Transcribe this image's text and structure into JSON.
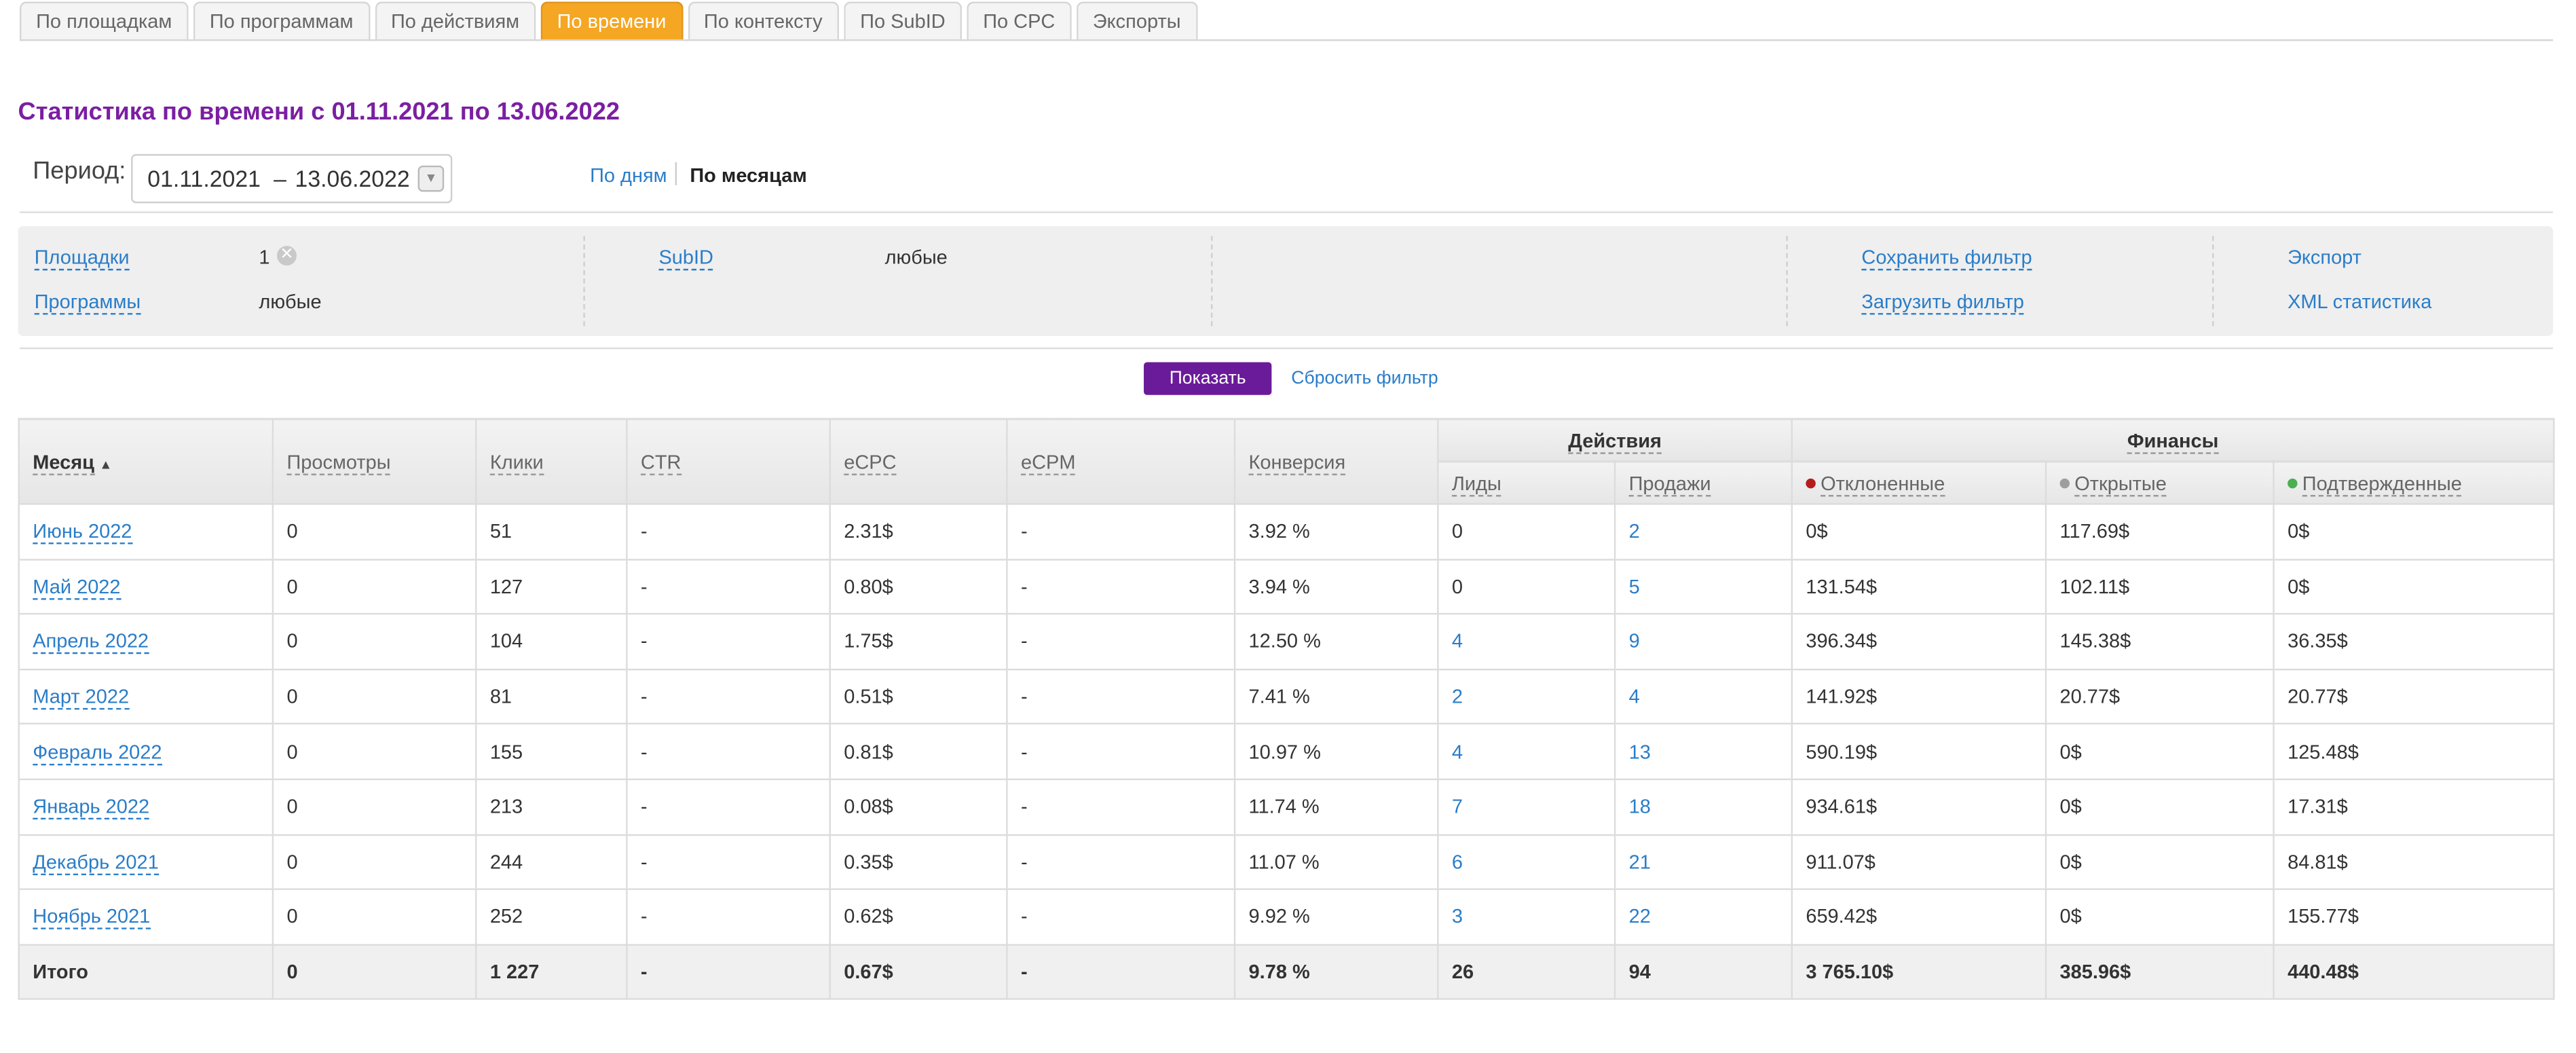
{
  "tabs": [
    {
      "label": "По площадкам",
      "active": false
    },
    {
      "label": "По программам",
      "active": false
    },
    {
      "label": "По действиям",
      "active": false
    },
    {
      "label": "По времени",
      "active": true
    },
    {
      "label": "По контексту",
      "active": false
    },
    {
      "label": "По SubID",
      "active": false
    },
    {
      "label": "По CPC",
      "active": false
    },
    {
      "label": "Экспорты",
      "active": false
    }
  ],
  "page_title": "Статистика по времени с 01.11.2021 по 13.06.2022",
  "period": {
    "label": "Период:",
    "from": "01.11.2021",
    "dash": "–",
    "to": "13.06.2022",
    "group_days": "По дням",
    "group_months": "По месяцам"
  },
  "filters": {
    "platforms_label": "Площадки",
    "platforms_value": "1",
    "programs_label": "Программы",
    "programs_value": "любые",
    "subid_label": "SubID",
    "subid_value": "любые",
    "save_filter": "Сохранить фильтр",
    "load_filter": "Загрузить фильтр",
    "export": "Экспорт",
    "xml_stats": "XML статистика"
  },
  "actions": {
    "show": "Показать",
    "reset": "Сбросить фильтр"
  },
  "table": {
    "headers": {
      "month": "Месяц",
      "views": "Просмотры",
      "clicks": "Клики",
      "ctr": "CTR",
      "ecpc": "eCPC",
      "ecpm": "eCPM",
      "conversion": "Конверсия",
      "actions_group": "Действия",
      "leads": "Лиды",
      "sales": "Продажи",
      "finance_group": "Финансы",
      "rejected": "Отклоненные",
      "open": "Открытые",
      "confirmed": "Подтвержденные"
    },
    "status_colors": {
      "rejected": "#b71c1c",
      "open": "#9e9e9e",
      "confirmed": "#4caf50"
    },
    "rows": [
      {
        "month": "Июнь 2022",
        "views": "0",
        "clicks": "51",
        "ctr": "-",
        "ecpc": "2.31$",
        "ecpm": "-",
        "conversion": "3.92 %",
        "leads": "0",
        "sales": "2",
        "rejected": "0$",
        "open": "117.69$",
        "confirmed": "0$"
      },
      {
        "month": "Май 2022",
        "views": "0",
        "clicks": "127",
        "ctr": "-",
        "ecpc": "0.80$",
        "ecpm": "-",
        "conversion": "3.94 %",
        "leads": "0",
        "sales": "5",
        "rejected": "131.54$",
        "open": "102.11$",
        "confirmed": "0$"
      },
      {
        "month": "Апрель 2022",
        "views": "0",
        "clicks": "104",
        "ctr": "-",
        "ecpc": "1.75$",
        "ecpm": "-",
        "conversion": "12.50 %",
        "leads": "4",
        "sales": "9",
        "rejected": "396.34$",
        "open": "145.38$",
        "confirmed": "36.35$"
      },
      {
        "month": "Март 2022",
        "views": "0",
        "clicks": "81",
        "ctr": "-",
        "ecpc": "0.51$",
        "ecpm": "-",
        "conversion": "7.41 %",
        "leads": "2",
        "sales": "4",
        "rejected": "141.92$",
        "open": "20.77$",
        "confirmed": "20.77$"
      },
      {
        "month": "Февраль 2022",
        "views": "0",
        "clicks": "155",
        "ctr": "-",
        "ecpc": "0.81$",
        "ecpm": "-",
        "conversion": "10.97 %",
        "leads": "4",
        "sales": "13",
        "rejected": "590.19$",
        "open": "0$",
        "confirmed": "125.48$"
      },
      {
        "month": "Январь 2022",
        "views": "0",
        "clicks": "213",
        "ctr": "-",
        "ecpc": "0.08$",
        "ecpm": "-",
        "conversion": "11.74 %",
        "leads": "7",
        "sales": "18",
        "rejected": "934.61$",
        "open": "0$",
        "confirmed": "17.31$"
      },
      {
        "month": "Декабрь 2021",
        "views": "0",
        "clicks": "244",
        "ctr": "-",
        "ecpc": "0.35$",
        "ecpm": "-",
        "conversion": "11.07 %",
        "leads": "6",
        "sales": "21",
        "rejected": "911.07$",
        "open": "0$",
        "confirmed": "84.81$"
      },
      {
        "month": "Ноябрь 2021",
        "views": "0",
        "clicks": "252",
        "ctr": "-",
        "ecpc": "0.62$",
        "ecpm": "-",
        "conversion": "9.92 %",
        "leads": "3",
        "sales": "22",
        "rejected": "659.42$",
        "open": "0$",
        "confirmed": "155.77$"
      }
    ],
    "total": {
      "month": "Итого",
      "views": "0",
      "clicks": "1 227",
      "ctr": "-",
      "ecpc": "0.67$",
      "ecpm": "-",
      "conversion": "9.78 %",
      "leads": "26",
      "sales": "94",
      "rejected": "3 765.10$",
      "open": "385.96$",
      "confirmed": "440.48$"
    }
  }
}
